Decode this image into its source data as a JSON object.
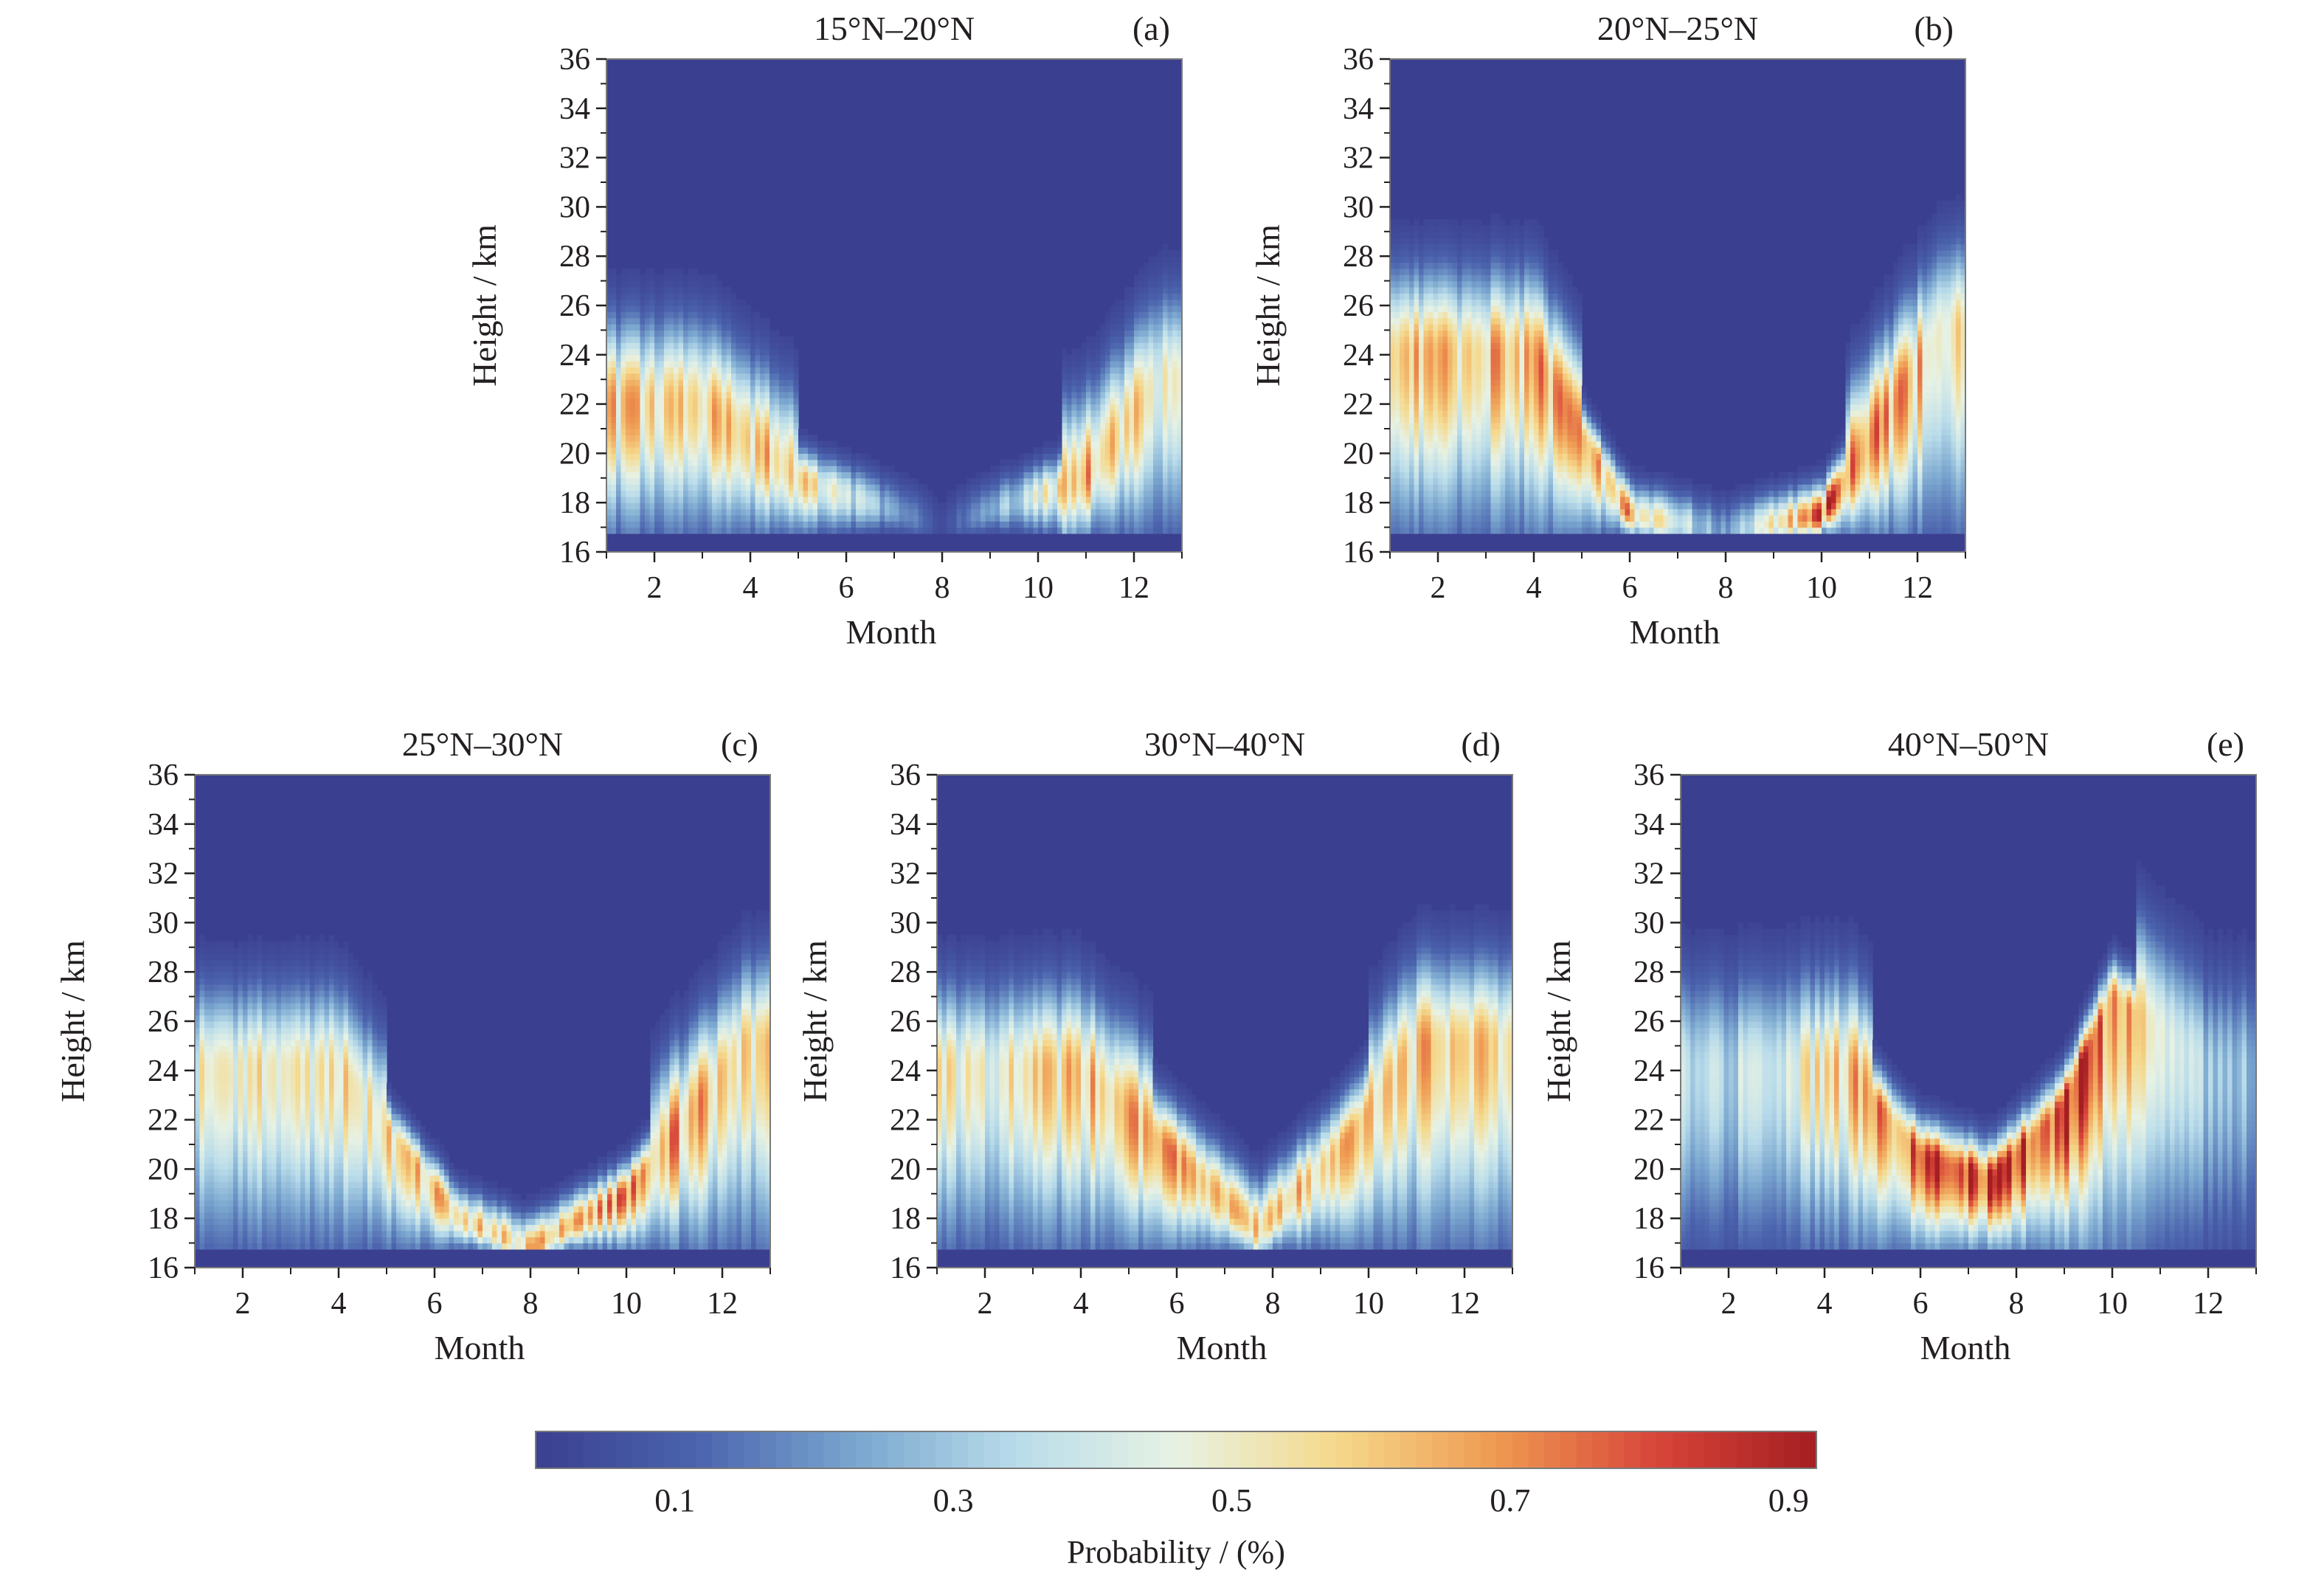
{
  "chart_data": [
    {
      "id": "a",
      "type": "heatmap",
      "title": "15°N–20°N",
      "panel_label": "(a)",
      "xlabel": "Month",
      "ylabel": "Height / km",
      "xlim": [
        1,
        13
      ],
      "ylim": [
        16,
        36
      ],
      "xticks": [
        2,
        4,
        6,
        8,
        10,
        12
      ],
      "yticks": [
        16,
        18,
        20,
        22,
        24,
        26,
        28,
        30,
        32,
        34,
        36
      ],
      "pattern": "tropical",
      "description_points": [
        {
          "month": 1.5,
          "core_height": 22,
          "peak_probability": 0.6
        },
        {
          "month": 3.0,
          "core_height": 22,
          "peak_probability": 0.6
        },
        {
          "month": 5.0,
          "core_height": 19,
          "peak_probability": 0.6
        },
        {
          "month": 8.0,
          "core_height": 17,
          "peak_probability": 0.05
        },
        {
          "month": 11.0,
          "core_height": 19,
          "peak_probability": 0.65
        },
        {
          "month": 12.5,
          "core_height": 23,
          "peak_probability": 0.55
        }
      ]
    },
    {
      "id": "b",
      "type": "heatmap",
      "title": "20°N–25°N",
      "panel_label": "(b)",
      "xlabel": "Month",
      "ylabel": "Height / km",
      "xlim": [
        1,
        13
      ],
      "ylim": [
        16,
        36
      ],
      "xticks": [
        2,
        4,
        6,
        8,
        10,
        12
      ],
      "yticks": [
        16,
        18,
        20,
        22,
        24,
        26,
        28,
        30,
        32,
        34,
        36
      ],
      "pattern": "subtropical",
      "description_points": [
        {
          "month": 2.0,
          "core_height": 24,
          "peak_probability": 0.6
        },
        {
          "month": 4.0,
          "core_height": 24,
          "peak_probability": 0.65
        },
        {
          "month": 6.0,
          "core_height": 17.5,
          "peak_probability": 0.65
        },
        {
          "month": 8.0,
          "core_height": 16.8,
          "peak_probability": 0.2
        },
        {
          "month": 10.0,
          "core_height": 17.5,
          "peak_probability": 0.8
        },
        {
          "month": 12.5,
          "core_height": 25,
          "peak_probability": 0.6
        }
      ]
    },
    {
      "id": "c",
      "type": "heatmap",
      "title": "25°N–30°N",
      "panel_label": "(c)",
      "xlabel": "Month",
      "ylabel": "Height / km",
      "xlim": [
        1,
        13
      ],
      "ylim": [
        16,
        36
      ],
      "xticks": [
        2,
        4,
        6,
        8,
        10,
        12
      ],
      "yticks": [
        16,
        18,
        20,
        22,
        24,
        26,
        28,
        30,
        32,
        34,
        36
      ],
      "pattern": "subtropical",
      "description_points": [
        {
          "month": 2.0,
          "core_height": 24,
          "peak_probability": 0.5
        },
        {
          "month": 4.0,
          "core_height": 24,
          "peak_probability": 0.55
        },
        {
          "month": 6.5,
          "core_height": 18,
          "peak_probability": 0.65
        },
        {
          "month": 8.0,
          "core_height": 16.8,
          "peak_probability": 0.6
        },
        {
          "month": 10.0,
          "core_height": 19,
          "peak_probability": 0.7
        },
        {
          "month": 12.5,
          "core_height": 25,
          "peak_probability": 0.6
        }
      ]
    },
    {
      "id": "d",
      "type": "heatmap",
      "title": "30°N–40°N",
      "panel_label": "(d)",
      "xlabel": "Month",
      "ylabel": "Height / km",
      "xlim": [
        1,
        13
      ],
      "ylim": [
        16,
        36
      ],
      "xticks": [
        2,
        4,
        6,
        8,
        10,
        12
      ],
      "yticks": [
        16,
        18,
        20,
        22,
        24,
        26,
        28,
        30,
        32,
        34,
        36
      ],
      "pattern": "midlatitude",
      "description_points": [
        {
          "month": 2.0,
          "core_height": 24,
          "peak_probability": 0.5
        },
        {
          "month": 4.0,
          "core_height": 24,
          "peak_probability": 0.6
        },
        {
          "month": 6.0,
          "core_height": 20.5,
          "peak_probability": 0.7
        },
        {
          "month": 7.7,
          "core_height": 17.5,
          "peak_probability": 0.6
        },
        {
          "month": 9.5,
          "core_height": 21,
          "peak_probability": 0.6
        },
        {
          "month": 11.0,
          "core_height": 25,
          "peak_probability": 0.6
        }
      ]
    },
    {
      "id": "e",
      "type": "heatmap",
      "title": "40°N–50°N",
      "panel_label": "(e)",
      "xlabel": "Month",
      "ylabel": "Height / km",
      "xlim": [
        1,
        13
      ],
      "ylim": [
        16,
        36
      ],
      "xticks": [
        2,
        4,
        6,
        8,
        10,
        12
      ],
      "yticks": [
        16,
        18,
        20,
        22,
        24,
        26,
        28,
        30,
        32,
        34,
        36
      ],
      "pattern": "highlatitude",
      "description_points": [
        {
          "month": 2.0,
          "core_height": 24,
          "peak_probability": 0.35
        },
        {
          "month": 4.5,
          "core_height": 24,
          "peak_probability": 0.6
        },
        {
          "month": 6.0,
          "core_height": 20.5,
          "peak_probability": 0.85
        },
        {
          "month": 7.5,
          "core_height": 19.5,
          "peak_probability": 0.9
        },
        {
          "month": 9.0,
          "core_height": 22.5,
          "peak_probability": 0.85
        },
        {
          "month": 10.0,
          "core_height": 27,
          "peak_probability": 0.75
        },
        {
          "month": 12.0,
          "core_height": 24,
          "peak_probability": 0.3
        }
      ]
    }
  ],
  "colorbar": {
    "label": "Probability / (%)",
    "ticks": [
      "0.1",
      "0.3",
      "0.5",
      "0.7",
      "0.9"
    ],
    "tick_values": [
      0.1,
      0.3,
      0.5,
      0.7,
      0.9
    ],
    "range": [
      0,
      0.92
    ],
    "colors": [
      "#3b3f8f",
      "#4b63ad",
      "#7aa6cf",
      "#b9dcea",
      "#e7f2e4",
      "#f5d98c",
      "#ef9a52",
      "#d8453a",
      "#a41e22"
    ]
  }
}
